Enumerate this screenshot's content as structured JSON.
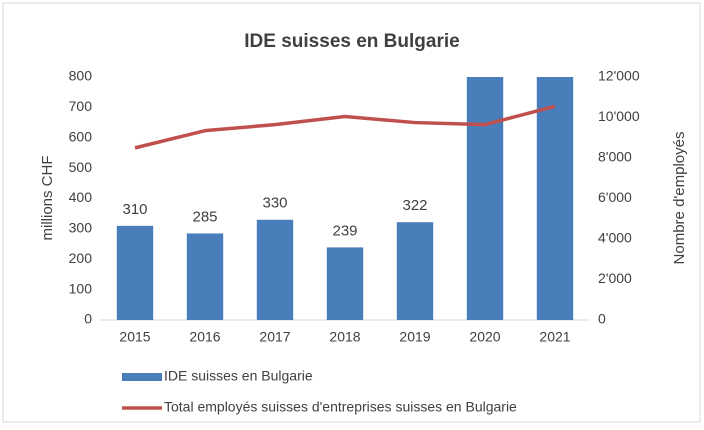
{
  "chart_data": {
    "type": "bar_line",
    "title": "IDE suisses en Bulgarie",
    "categories": [
      "2015",
      "2016",
      "2017",
      "2018",
      "2019",
      "2020",
      "2021"
    ],
    "series": [
      {
        "name": "IDE suisses en Bulgarie",
        "type": "bar",
        "color": "#4a7ebb",
        "values": [
          310,
          285,
          330,
          239,
          322,
          800,
          800
        ]
      },
      {
        "name": "Total employés suisses d'entreprises suisses en Bulgarie",
        "type": "line",
        "axis": "y2",
        "color": "#c0504d",
        "values": [
          8500,
          9350,
          9650,
          10050,
          9750,
          9650,
          10550
        ]
      }
    ],
    "ylabel": "millions CHF",
    "y2label": "Nombre d'employés",
    "ylim": [
      0,
      800
    ],
    "yticks": [
      0,
      100,
      200,
      300,
      400,
      500,
      600,
      700,
      800
    ],
    "y2lim": [
      0,
      12000
    ],
    "y2ticks": [
      0,
      {
        "value": 2000,
        "label": "2'000"
      },
      {
        "value": 4000,
        "label": "4'000"
      },
      {
        "value": 6000,
        "label": "6'000"
      },
      {
        "value": 8000,
        "label": "8'000"
      },
      {
        "value": 10000,
        "label": "10'000"
      },
      {
        "value": 12000,
        "label": "12'000"
      }
    ],
    "legend": "bottom"
  }
}
